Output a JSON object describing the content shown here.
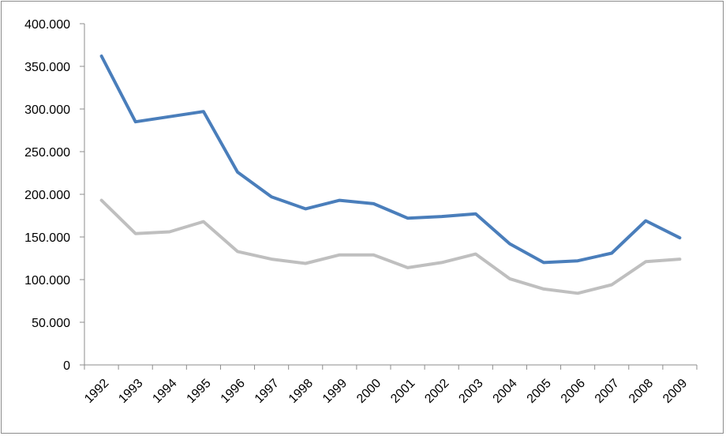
{
  "chart_data": {
    "type": "line",
    "title": "",
    "xlabel": "",
    "ylabel": "",
    "x": [
      "1992",
      "1993",
      "1994",
      "1995",
      "1996",
      "1997",
      "1998",
      "1999",
      "2000",
      "2001",
      "2002",
      "2003",
      "2004",
      "2005",
      "2006",
      "2007",
      "2008",
      "2009"
    ],
    "ylim": [
      0,
      400000
    ],
    "yticks": [
      0,
      50000,
      100000,
      150000,
      200000,
      250000,
      300000,
      350000,
      400000
    ],
    "ytick_labels": [
      "0",
      "50.000",
      "100.000",
      "150.000",
      "200.000",
      "250.000",
      "300.000",
      "350.000",
      "400.000"
    ],
    "grid": false,
    "legend": "none",
    "series": [
      {
        "color": "#4a7ebb",
        "values": [
          362000,
          285000,
          291000,
          297000,
          226000,
          197000,
          183000,
          193000,
          189000,
          172000,
          174000,
          177000,
          142000,
          120000,
          122000,
          131000,
          169000,
          149000
        ]
      },
      {
        "color": "#bfbfbf",
        "values": [
          193000,
          154000,
          156000,
          168000,
          133000,
          124000,
          119000,
          129000,
          129000,
          114000,
          120000,
          130000,
          101000,
          89000,
          84000,
          94000,
          121000,
          124000
        ]
      }
    ]
  }
}
